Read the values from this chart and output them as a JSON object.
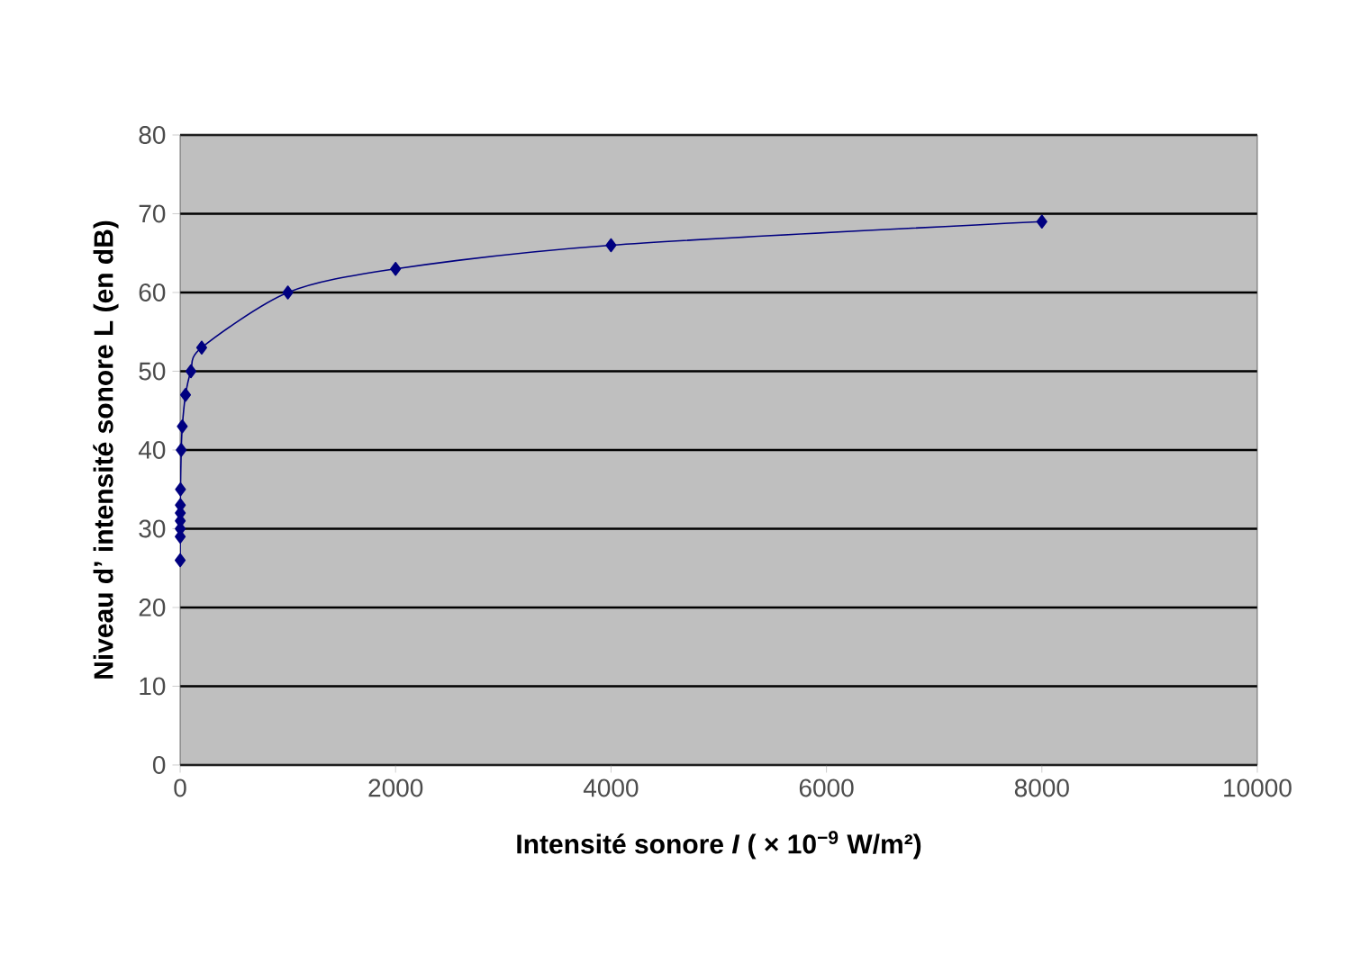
{
  "chart_data": {
    "type": "line",
    "xlabel": "Intensité sonore *I* ( × 10$^{−9}$ W/m²)",
    "ylabel": "Niveau d’ intensité sonore L (en dB)",
    "series": [
      {
        "color": "#000080",
        "x": [
          0.4,
          0.8,
          1,
          1.25,
          1.6,
          2,
          3.2,
          10,
          20,
          50,
          100,
          200,
          1000,
          2000,
          4000,
          8000
        ],
        "values": [
          26,
          29,
          30,
          31,
          32,
          33,
          35,
          40,
          43,
          47,
          50,
          53,
          60,
          63,
          66,
          69
        ]
      }
    ],
    "xlim": [
      0,
      10000
    ],
    "xticks": [
      0,
      2000,
      4000,
      6000,
      8000,
      10000
    ],
    "ylim": [
      0,
      80
    ],
    "yticks": [
      0,
      10,
      20,
      30,
      40,
      50,
      60,
      70,
      80
    ],
    "grid": "y",
    "marker": "diamond",
    "line_style": "solid"
  }
}
